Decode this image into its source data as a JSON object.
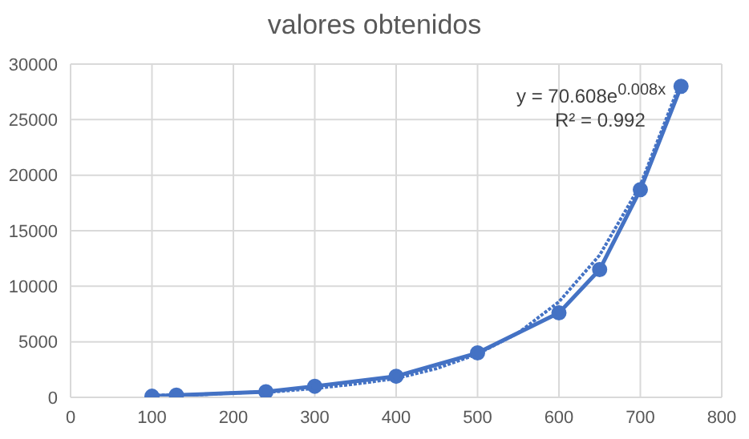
{
  "chart_data": {
    "type": "line",
    "title": "valores obtenidos",
    "xlim": [
      0,
      800
    ],
    "xticks": [
      0,
      100,
      200,
      300,
      400,
      500,
      600,
      700,
      800
    ],
    "ylim": [
      0,
      30000
    ],
    "yticks": [
      0,
      5000,
      10000,
      15000,
      20000,
      25000,
      30000
    ],
    "grid": true,
    "annotations": [
      "y = 70.608e$^{0.008x}$",
      "R² = 0.992"
    ],
    "series": [
      {
        "color": "#4472c4",
        "marker": "circle",
        "line_style": "solid",
        "x": [
          100,
          130,
          240,
          300,
          400,
          500,
          600,
          650,
          700,
          750
        ],
        "values": [
          100,
          200,
          500,
          1000,
          1900,
          4000,
          7600,
          11500,
          18700,
          28000
        ]
      },
      {
        "color": "#4472c4",
        "marker": "none",
        "line_style": "dotted",
        "x": [
          100,
          150,
          200,
          250,
          300,
          350,
          400,
          450,
          500,
          550,
          600,
          650,
          700,
          750
        ],
        "values": [
          200,
          200,
          400,
          500,
          800,
          1200,
          1700,
          2600,
          3900,
          5800,
          8600,
          12800,
          19100,
          28500
        ]
      }
    ]
  }
}
